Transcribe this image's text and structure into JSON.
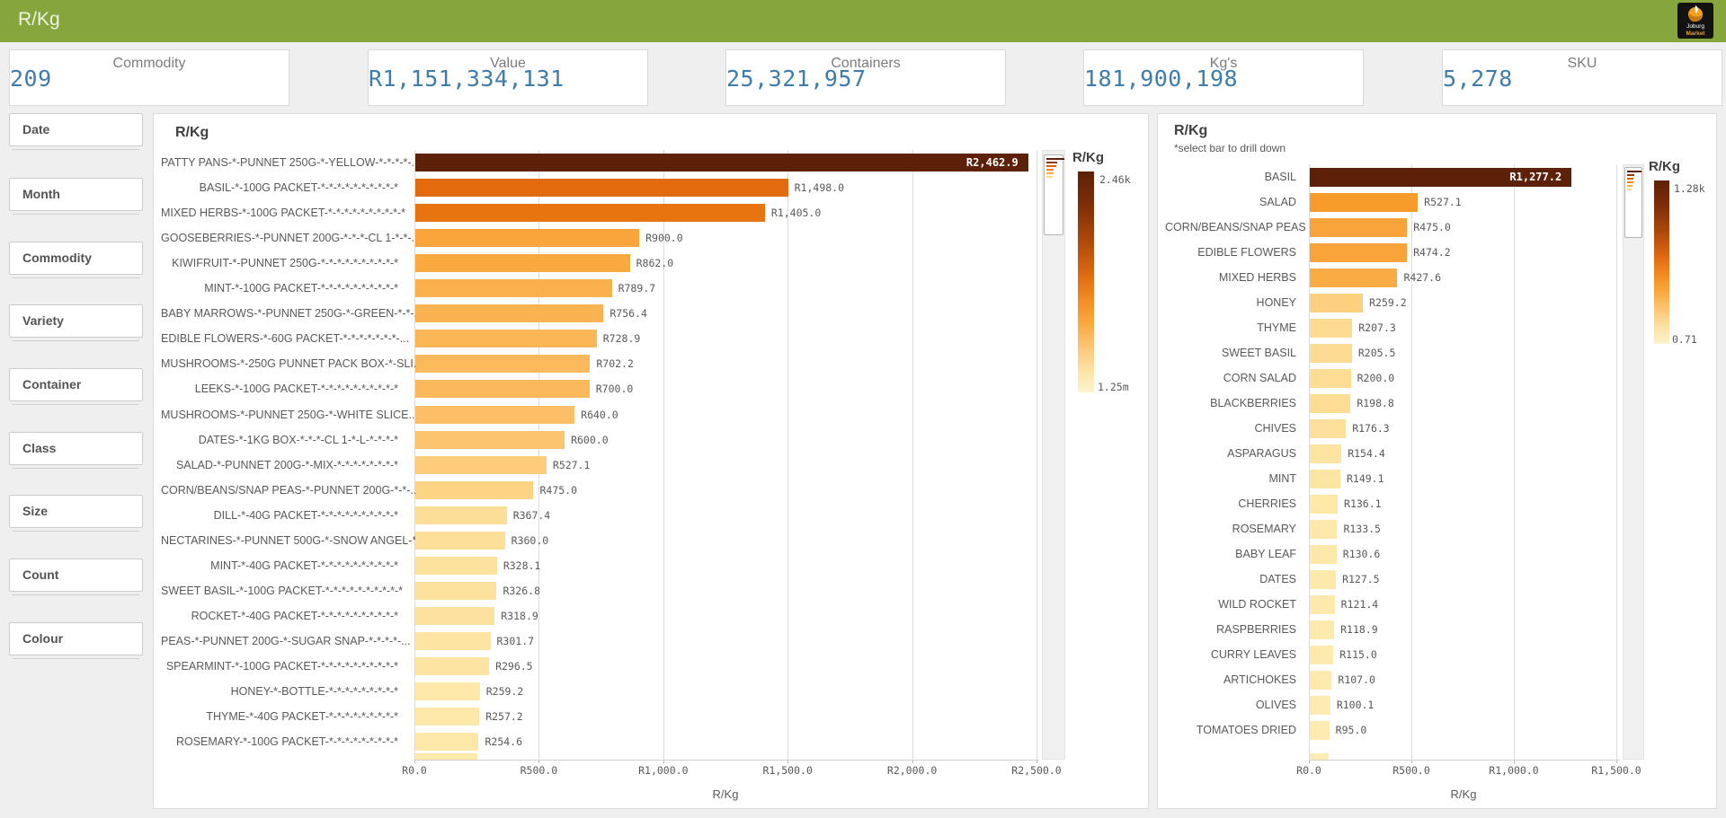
{
  "header": {
    "title": "R/Kg",
    "logo": {
      "line1": "Joburg",
      "line2": "Market"
    }
  },
  "kpis": [
    {
      "label": "Commodity",
      "value": "209"
    },
    {
      "label": "Value",
      "value": "R1,151,334,131"
    },
    {
      "label": "Containers",
      "value": "25,321,957"
    },
    {
      "label": "Kg's",
      "value": "181,900,198"
    },
    {
      "label": "SKU",
      "value": "5,278"
    }
  ],
  "filters": [
    {
      "label": "Date"
    },
    {
      "label": "Month"
    },
    {
      "label": "Commodity"
    },
    {
      "label": "Variety"
    },
    {
      "label": "Container"
    },
    {
      "label": "Class"
    },
    {
      "label": "Size"
    },
    {
      "label": "Count"
    },
    {
      "label": "Colour"
    }
  ],
  "palette": [
    [
      0.0,
      "#fdf2c5"
    ],
    [
      0.1,
      "#fde9ab"
    ],
    [
      0.18,
      "#fdd78a"
    ],
    [
      0.26,
      "#fcbf67"
    ],
    [
      0.34,
      "#faab42"
    ],
    [
      0.42,
      "#f79928"
    ],
    [
      0.55,
      "#eb7810"
    ],
    [
      0.68,
      "#d65c0c"
    ],
    [
      0.85,
      "#8a3409"
    ],
    [
      1.0,
      "#5c2108"
    ]
  ],
  "chart_data": [
    {
      "type": "bar",
      "orientation": "horizontal",
      "title": "R/Kg",
      "subtitle": "",
      "xlabel": "R/Kg",
      "legend": {
        "title": "R/Kg",
        "max_label": "2.46k",
        "min_label": "1.25m"
      },
      "x_ticks": [
        {
          "value": 0,
          "label": "R0.0"
        },
        {
          "value": 500,
          "label": "R500.0"
        },
        {
          "value": 1000,
          "label": "R1,000.0"
        },
        {
          "value": 1500,
          "label": "R1,500.0"
        },
        {
          "value": 2000,
          "label": "R2,000.0"
        },
        {
          "value": 2500,
          "label": "R2,500.0"
        }
      ],
      "xlim": [
        0,
        2513
      ],
      "partial_next_value": 250,
      "items": [
        {
          "label": "PATTY PANS-*-PUNNET 250G-*-YELLOW-*-*-*-*-...",
          "value": 2462.9,
          "text": "R2,462.9",
          "label_inside": true
        },
        {
          "label": "BASIL-*-100G PACKET-*-*-*-*-*-*-*-*-*-*",
          "value": 1498.0,
          "text": "R1,498.0"
        },
        {
          "label": "MIXED HERBS-*-100G PACKET-*-*-*-*-*-*-*-*-*-*",
          "value": 1405.0,
          "text": "R1,405.0"
        },
        {
          "label": "GOOSEBERRIES-*-PUNNET 200G-*-*-*-CL 1-*-*-...",
          "value": 900.0,
          "text": "R900.0"
        },
        {
          "label": "KIWIFRUIT-*-PUNNET 250G-*-*-*-*-*-*-*-*-*-*",
          "value": 862.0,
          "text": "R862.0"
        },
        {
          "label": "MINT-*-100G PACKET-*-*-*-*-*-*-*-*-*-*",
          "value": 789.7,
          "text": "R789.7"
        },
        {
          "label": "BABY MARROWS-*-PUNNET 250G-*-GREEN-*-*-...",
          "value": 756.4,
          "text": "R756.4"
        },
        {
          "label": "EDIBLE FLOWERS-*-60G PACKET-*-*-*-*-*-*-*-...",
          "value": 728.9,
          "text": "R728.9"
        },
        {
          "label": "MUSHROOMS-*-250G PUNNET PACK BOX-*-SLI...",
          "value": 702.2,
          "text": "R702.2"
        },
        {
          "label": "LEEKS-*-100G PACKET-*-*-*-*-*-*-*-*-*-*",
          "value": 700.0,
          "text": "R700.0"
        },
        {
          "label": "MUSHROOMS-*-PUNNET 250G-*-WHITE SLICE...",
          "value": 640.0,
          "text": "R640.0"
        },
        {
          "label": "DATES-*-1KG BOX-*-*-*-CL 1-*-L-*-*-*-*",
          "value": 600.0,
          "text": "R600.0"
        },
        {
          "label": "SALAD-*-PUNNET 200G-*-MIX-*-*-*-*-*-*-*-*",
          "value": 527.1,
          "text": "R527.1"
        },
        {
          "label": "CORN/BEANS/SNAP PEAS-*-PUNNET 200G-*-*-...",
          "value": 475.0,
          "text": "R475.0"
        },
        {
          "label": "DILL-*-40G PACKET-*-*-*-*-*-*-*-*-*-*",
          "value": 367.4,
          "text": "R367.4"
        },
        {
          "label": "NECTARINES-*-PUNNET 500G-*-SNOW ANGEL-*...",
          "value": 360.0,
          "text": "R360.0"
        },
        {
          "label": "MINT-*-40G PACKET-*-*-*-*-*-*-*-*-*-*",
          "value": 328.1,
          "text": "R328.1"
        },
        {
          "label": "SWEET BASIL-*-100G PACKET-*-*-*-*-*-*-*-*-*-*",
          "value": 326.8,
          "text": "R326.8"
        },
        {
          "label": "ROCKET-*-40G PACKET-*-*-*-*-*-*-*-*-*-*",
          "value": 318.9,
          "text": "R318.9"
        },
        {
          "label": "PEAS-*-PUNNET 200G-*-SUGAR SNAP-*-*-*-*-...",
          "value": 301.7,
          "text": "R301.7"
        },
        {
          "label": "SPEARMINT-*-100G PACKET-*-*-*-*-*-*-*-*-*-*",
          "value": 296.5,
          "text": "R296.5"
        },
        {
          "label": "HONEY-*-BOTTLE-*-*-*-*-*-*-*-*-*",
          "value": 259.2,
          "text": "R259.2"
        },
        {
          "label": "THYME-*-40G PACKET-*-*-*-*-*-*-*-*-*",
          "value": 257.2,
          "text": "R257.2"
        },
        {
          "label": "ROSEMARY-*-100G PACKET-*-*-*-*-*-*-*-*-*",
          "value": 254.6,
          "text": "R254.6"
        }
      ]
    },
    {
      "type": "bar",
      "orientation": "horizontal",
      "title": "R/Kg",
      "subtitle": "*select bar to drill down",
      "xlabel": "R/Kg",
      "legend": {
        "title": "R/Kg",
        "max_label": "1.28k",
        "min_label": "0.71"
      },
      "x_ticks": [
        {
          "value": 0,
          "label": "R0.0"
        },
        {
          "value": 500,
          "label": "R500.0"
        },
        {
          "value": 1000,
          "label": "R1,000.0"
        },
        {
          "value": 1500,
          "label": "R1,500.0"
        }
      ],
      "xlim": [
        0,
        1520
      ],
      "partial_next_value": 90,
      "items": [
        {
          "label": "BASIL",
          "value": 1277.2,
          "text": "R1,277.2",
          "label_inside": true
        },
        {
          "label": "SALAD",
          "value": 527.1,
          "text": "R527.1"
        },
        {
          "label": "CORN/BEANS/SNAP PEAS",
          "value": 475.0,
          "text": "R475.0"
        },
        {
          "label": "EDIBLE FLOWERS",
          "value": 474.2,
          "text": "R474.2"
        },
        {
          "label": "MIXED HERBS",
          "value": 427.6,
          "text": "R427.6"
        },
        {
          "label": "HONEY",
          "value": 259.2,
          "text": "R259.2"
        },
        {
          "label": "THYME",
          "value": 207.3,
          "text": "R207.3"
        },
        {
          "label": "SWEET BASIL",
          "value": 205.5,
          "text": "R205.5"
        },
        {
          "label": "CORN SALAD",
          "value": 200.0,
          "text": "R200.0"
        },
        {
          "label": "BLACKBERRIES",
          "value": 198.8,
          "text": "R198.8"
        },
        {
          "label": "CHIVES",
          "value": 176.3,
          "text": "R176.3"
        },
        {
          "label": "ASPARAGUS",
          "value": 154.4,
          "text": "R154.4"
        },
        {
          "label": "MINT",
          "value": 149.1,
          "text": "R149.1"
        },
        {
          "label": "CHERRIES",
          "value": 136.1,
          "text": "R136.1"
        },
        {
          "label": "ROSEMARY",
          "value": 133.5,
          "text": "R133.5"
        },
        {
          "label": "BABY LEAF",
          "value": 130.6,
          "text": "R130.6"
        },
        {
          "label": "DATES",
          "value": 127.5,
          "text": "R127.5"
        },
        {
          "label": "WILD ROCKET",
          "value": 121.4,
          "text": "R121.4"
        },
        {
          "label": "RASPBERRIES",
          "value": 118.9,
          "text": "R118.9"
        },
        {
          "label": "CURRY LEAVES",
          "value": 115.0,
          "text": "R115.0"
        },
        {
          "label": "ARTICHOKES",
          "value": 107.0,
          "text": "R107.0"
        },
        {
          "label": "OLIVES",
          "value": 100.1,
          "text": "R100.1"
        },
        {
          "label": "TOMATOES DRIED",
          "value": 95.0,
          "text": "R95.0"
        }
      ]
    }
  ],
  "colors": {
    "header_green": "#86a63d",
    "kpi_value_blue": "#3e7dab",
    "bar_max": "#5c2108",
    "bar_min": "#fdf2c5"
  }
}
